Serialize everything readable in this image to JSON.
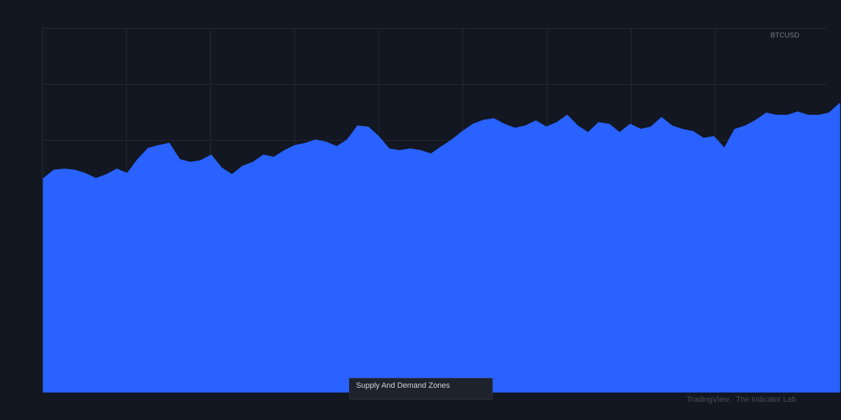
{
  "chart_data": {
    "type": "area",
    "title": "BTCUSD",
    "color": "#2962ff",
    "values": [
      38.1,
      39.6,
      39.8,
      39.6,
      39,
      38.1,
      38.8,
      39.8,
      39,
      41.5,
      43.5,
      44,
      44.4,
      41.5,
      41,
      41.3,
      42.3,
      40,
      38.8,
      40.3,
      41,
      42.3,
      41.9,
      43.1,
      44,
      44.4,
      45,
      44.6,
      43.8,
      45,
      47.5,
      47.3,
      45.6,
      43.4,
      43.1,
      43.4,
      43.1,
      42.5,
      43.8,
      45,
      46.5,
      47.8,
      48.5,
      48.8,
      47.8,
      47.1,
      47.5,
      48.4,
      47.3,
      48.1,
      49.4,
      47.5,
      46.3,
      48.1,
      47.8,
      46.3,
      47.8,
      46.9,
      47.3,
      49,
      47.5,
      46.9,
      46.5,
      45.3,
      45.6,
      43.5,
      46.9,
      47.5,
      48.5,
      49.8,
      49.4,
      49.4,
      50,
      49.4,
      49.4,
      49.8,
      51.5
    ],
    "ylim": [
      0,
      65
    ],
    "yticks": [
      45,
      55,
      65
    ],
    "grid": true
  },
  "indicator_label": "Supply And Demand Zones",
  "footer": "TradingView · The Indicator Lab"
}
